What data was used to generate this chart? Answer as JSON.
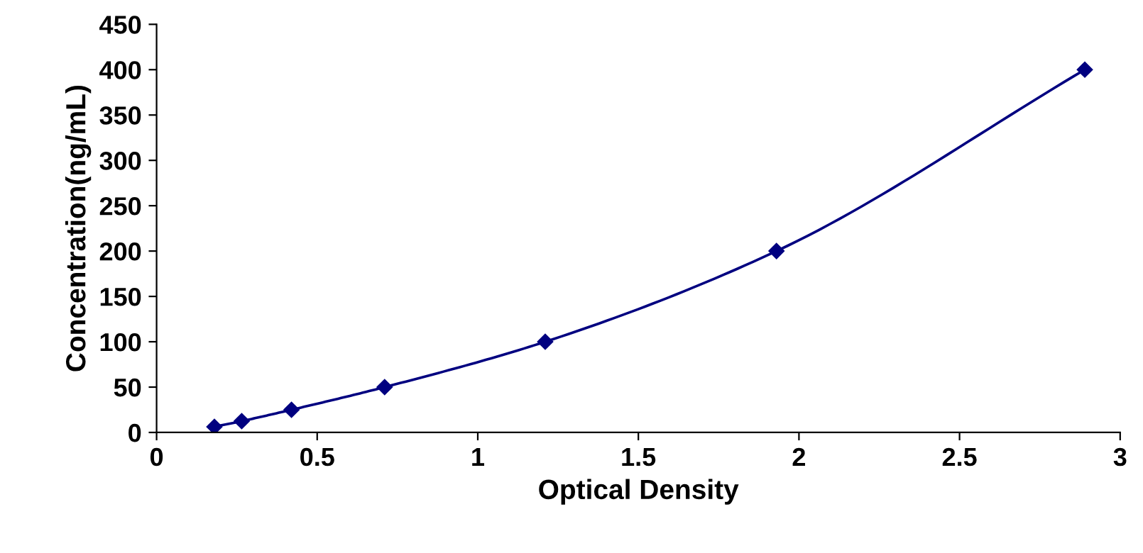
{
  "chart_data": {
    "type": "line",
    "xlabel": "Optical Density",
    "ylabel": "Concentration(ng/mL)",
    "x": [
      0.18,
      0.265,
      0.42,
      0.71,
      1.21,
      1.93,
      2.89
    ],
    "series": [
      {
        "color": "#000080",
        "values": [
          6.25,
          12.5,
          25,
          50,
          100,
          200,
          400
        ]
      }
    ],
    "xlim": [
      0,
      3
    ],
    "xticks": [
      0,
      0.5,
      1,
      1.5,
      2,
      2.5,
      3
    ],
    "ylim": [
      0,
      450
    ],
    "yticks": [
      0,
      50,
      100,
      150,
      200,
      250,
      300,
      350,
      400,
      450
    ],
    "marker": "diamond",
    "line_style": "solid",
    "grid": false,
    "legend": false
  }
}
